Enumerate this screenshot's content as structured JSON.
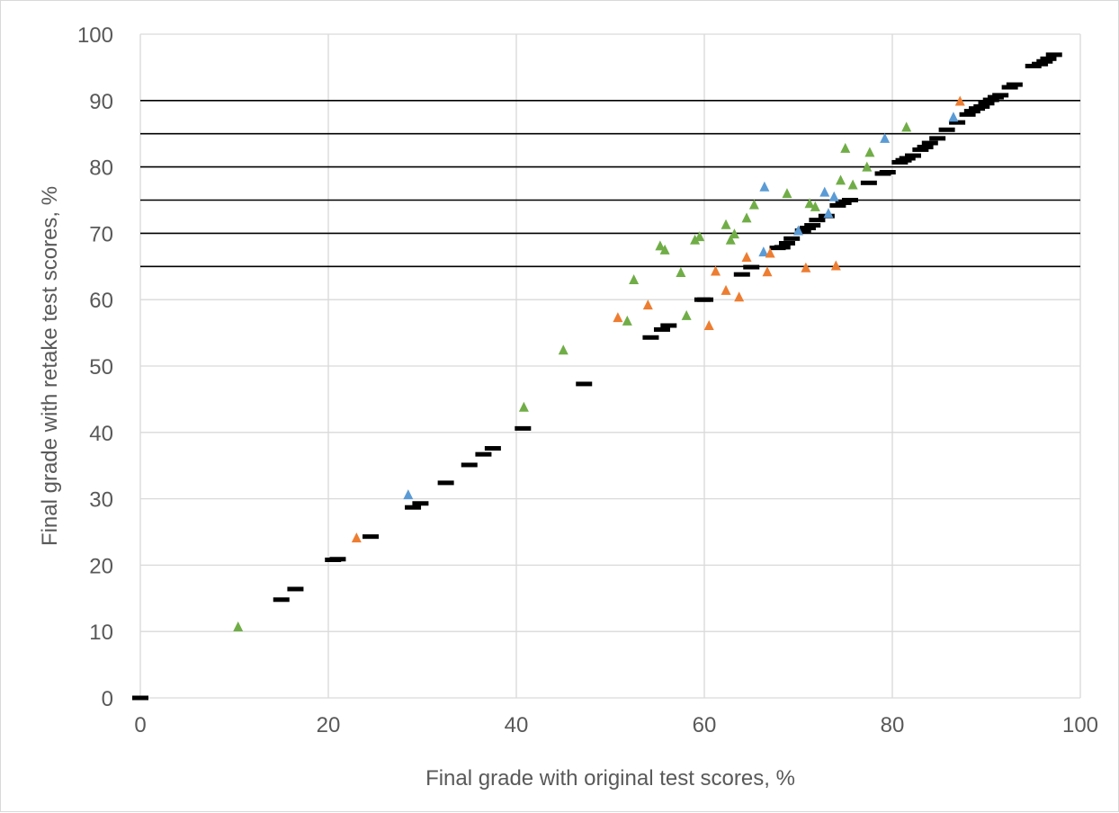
{
  "chart_data": {
    "type": "scatter",
    "title": "",
    "xlabel": "Final grade with original test scores, %",
    "ylabel": "Final grade with retake test scores, %",
    "xlim": [
      0,
      100
    ],
    "ylim": [
      0,
      100
    ],
    "x_ticks": [
      "0",
      "20",
      "40",
      "60",
      "80",
      "100"
    ],
    "y_ticks": [
      "0",
      "10",
      "20",
      "30",
      "40",
      "50",
      "60",
      "70",
      "80",
      "90",
      "100"
    ],
    "grid": true,
    "legend": "none",
    "reference_lines_y": [
      65,
      70,
      75,
      80,
      85,
      90
    ],
    "colors": {
      "unchanged": "#000000",
      "blue": "#5b9bd5",
      "orange": "#ed7d31",
      "green": "#70ad47",
      "grid": "#d9d9d9",
      "reference": "#000000"
    },
    "series": [
      {
        "marker": "dash",
        "color_key": "unchanged",
        "points": [
          [
            0,
            0
          ],
          [
            15,
            14.8
          ],
          [
            16.5,
            16.4
          ],
          [
            20.5,
            20.8
          ],
          [
            21,
            20.9
          ],
          [
            24.5,
            24.3
          ],
          [
            29,
            28.7
          ],
          [
            29.8,
            29.3
          ],
          [
            32.5,
            32.4
          ],
          [
            35,
            35.1
          ],
          [
            36.5,
            36.7
          ],
          [
            37.5,
            37.6
          ],
          [
            40.7,
            40.6
          ],
          [
            47.2,
            47.3
          ],
          [
            54.3,
            54.3
          ],
          [
            55.5,
            55.5
          ],
          [
            56.2,
            56.1
          ],
          [
            59.8,
            60
          ],
          [
            60.1,
            60
          ],
          [
            64,
            63.8
          ],
          [
            65,
            64.9
          ],
          [
            67.8,
            67.8
          ],
          [
            68.3,
            67.9
          ],
          [
            68.8,
            68.5
          ],
          [
            69.3,
            69.2
          ],
          [
            70.5,
            70.4
          ],
          [
            71,
            70.8
          ],
          [
            71.5,
            71.2
          ],
          [
            72,
            72
          ],
          [
            73,
            72.6
          ],
          [
            74.2,
            74.2
          ],
          [
            74.8,
            74.6
          ],
          [
            75.5,
            75
          ],
          [
            77.5,
            77.6
          ],
          [
            79,
            79
          ],
          [
            79.5,
            79.2
          ],
          [
            80.8,
            80.7
          ],
          [
            81.2,
            81
          ],
          [
            81.6,
            81.3
          ],
          [
            82.2,
            81.7
          ],
          [
            83,
            82.6
          ],
          [
            83.5,
            83
          ],
          [
            84,
            83.6
          ],
          [
            84.8,
            84.3
          ],
          [
            85.8,
            85.6
          ],
          [
            86.9,
            86.7
          ],
          [
            88,
            87.9
          ],
          [
            88.5,
            88.4
          ],
          [
            89,
            88.8
          ],
          [
            89.5,
            89.1
          ],
          [
            90,
            89.6
          ],
          [
            90.5,
            90.1
          ],
          [
            91,
            90.5
          ],
          [
            91.5,
            90.8
          ],
          [
            92.5,
            92
          ],
          [
            93,
            92.4
          ],
          [
            95,
            95.2
          ],
          [
            95.7,
            95.5
          ],
          [
            96.2,
            95.9
          ],
          [
            96.6,
            96.3
          ],
          [
            97.2,
            96.9
          ]
        ]
      },
      {
        "marker": "triangle",
        "color_key": "blue",
        "points": [
          [
            28.5,
            30.6
          ],
          [
            66.3,
            67.2
          ],
          [
            66.4,
            77
          ],
          [
            70,
            70.4
          ],
          [
            72.8,
            76.2
          ],
          [
            73.2,
            73
          ],
          [
            73.8,
            75.5
          ],
          [
            79.2,
            84.3
          ],
          [
            86.5,
            87.5
          ]
        ]
      },
      {
        "marker": "triangle",
        "color_key": "orange",
        "points": [
          [
            23,
            24.1
          ],
          [
            50.8,
            57.3
          ],
          [
            54,
            59.2
          ],
          [
            60.5,
            56.1
          ],
          [
            61.2,
            64.3
          ],
          [
            62.3,
            61.4
          ],
          [
            63.7,
            60.4
          ],
          [
            64.5,
            66.4
          ],
          [
            66.7,
            64.2
          ],
          [
            67,
            67
          ],
          [
            70.8,
            64.8
          ],
          [
            74,
            65.1
          ],
          [
            87.2,
            89.9
          ]
        ]
      },
      {
        "marker": "triangle",
        "color_key": "green",
        "points": [
          [
            10.4,
            10.7
          ],
          [
            40.8,
            43.8
          ],
          [
            45,
            52.4
          ],
          [
            51.8,
            56.8
          ],
          [
            52.5,
            63
          ],
          [
            55.3,
            68.1
          ],
          [
            55.8,
            67.5
          ],
          [
            57.5,
            64.1
          ],
          [
            58.1,
            57.6
          ],
          [
            59,
            69
          ],
          [
            59.5,
            69.5
          ],
          [
            62.3,
            71.3
          ],
          [
            62.8,
            69
          ],
          [
            63.2,
            69.9
          ],
          [
            64.5,
            72.3
          ],
          [
            65.3,
            74.3
          ],
          [
            68.8,
            76
          ],
          [
            71.2,
            74.5
          ],
          [
            71.8,
            74
          ],
          [
            74.5,
            78
          ],
          [
            75,
            82.8
          ],
          [
            75.8,
            77.3
          ],
          [
            77.3,
            80
          ],
          [
            77.6,
            82.2
          ],
          [
            81.5,
            86
          ]
        ]
      }
    ]
  }
}
